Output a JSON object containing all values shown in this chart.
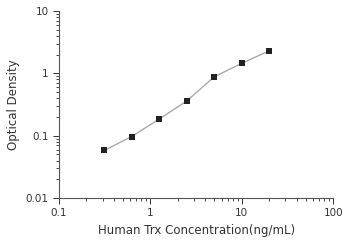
{
  "x_data": [
    0.313,
    0.625,
    1.25,
    2.5,
    5.0,
    10.0,
    20.0
  ],
  "y_data": [
    0.058,
    0.097,
    0.185,
    0.36,
    0.88,
    1.45,
    2.3
  ],
  "xlabel": "Human Trx Concentration(ng/mL)",
  "ylabel": "Optical Density",
  "xlim": [
    0.1,
    100
  ],
  "ylim": [
    0.01,
    10
  ],
  "marker": "s",
  "marker_color": "#222222",
  "marker_size": 4.5,
  "line_color": "#aaaaaa",
  "line_width": 1.0,
  "background_color": "#ffffff",
  "xticks": [
    0.1,
    1,
    10,
    100
  ],
  "yticks": [
    0.01,
    0.1,
    1,
    10
  ],
  "xtick_labels": [
    "0.1",
    "1",
    "10",
    "100"
  ],
  "ytick_labels": [
    "0.01",
    "0.1",
    "1",
    "10"
  ],
  "tick_label_fontsize": 7.5,
  "axis_label_fontsize": 8.5,
  "spine_color": "#555555",
  "spine_linewidth": 0.8
}
